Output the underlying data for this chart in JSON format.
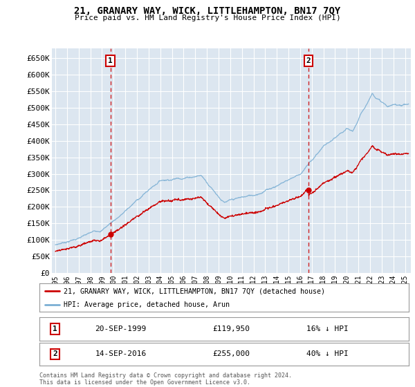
{
  "title": "21, GRANARY WAY, WICK, LITTLEHAMPTON, BN17 7QY",
  "subtitle": "Price paid vs. HM Land Registry's House Price Index (HPI)",
  "ylabel_ticks": [
    "£0",
    "£50K",
    "£100K",
    "£150K",
    "£200K",
    "£250K",
    "£300K",
    "£350K",
    "£400K",
    "£450K",
    "£500K",
    "£550K",
    "£600K",
    "£650K"
  ],
  "ytick_values": [
    0,
    50000,
    100000,
    150000,
    200000,
    250000,
    300000,
    350000,
    400000,
    450000,
    500000,
    550000,
    600000,
    650000
  ],
  "ylim": [
    0,
    680000
  ],
  "xlim_start": 1994.7,
  "xlim_end": 2025.5,
  "bg_color": "#ffffff",
  "plot_bg_color": "#dce6f0",
  "grid_color": "#ffffff",
  "hpi_line_color": "#7bafd4",
  "price_line_color": "#cc0000",
  "transaction1_x": 1999.72,
  "transaction1_y": 119950,
  "transaction2_x": 2016.71,
  "transaction2_y": 255000,
  "legend_line1": "21, GRANARY WAY, WICK, LITTLEHAMPTON, BN17 7QY (detached house)",
  "legend_line2": "HPI: Average price, detached house, Arun",
  "transaction1_date": "20-SEP-1999",
  "transaction1_price": "£119,950",
  "transaction1_hpi": "16% ↓ HPI",
  "transaction2_date": "14-SEP-2016",
  "transaction2_price": "£255,000",
  "transaction2_hpi": "40% ↓ HPI",
  "footer1": "Contains HM Land Registry data © Crown copyright and database right 2024.",
  "footer2": "This data is licensed under the Open Government Licence v3.0.",
  "xtick_years": [
    1995,
    1996,
    1997,
    1998,
    1999,
    2000,
    2001,
    2002,
    2003,
    2004,
    2005,
    2006,
    2007,
    2008,
    2009,
    2010,
    2011,
    2012,
    2013,
    2014,
    2015,
    2016,
    2017,
    2018,
    2019,
    2020,
    2021,
    2022,
    2023,
    2024,
    2025
  ]
}
